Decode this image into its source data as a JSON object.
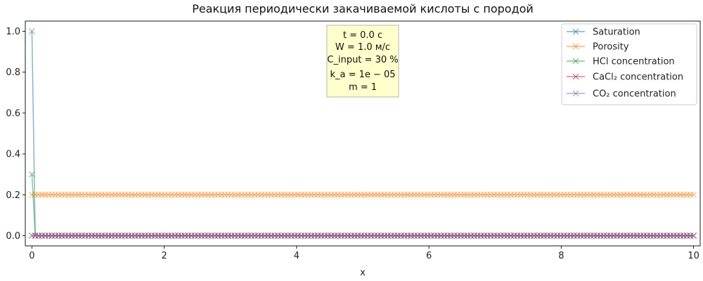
{
  "chart_data": {
    "type": "line",
    "title": "Реакция периодически закачиваемой кислоты с породой",
    "xlabel": "x",
    "ylabel": "",
    "xlim": [
      -0.1,
      10.1
    ],
    "ylim": [
      -0.05,
      1.05
    ],
    "x_ticks": [
      "0",
      "2",
      "4",
      "6",
      "8",
      "10"
    ],
    "y_ticks": [
      "0.0",
      "0.2",
      "0.4",
      "0.6",
      "0.8",
      "1.0"
    ],
    "x_range": [
      0,
      10
    ],
    "n_points": 200,
    "legend_position": "top-right",
    "marker": "x",
    "series": [
      {
        "name": "Saturation",
        "color": "#1f77b4",
        "start_value": 1.0,
        "rest_value": 0.0
      },
      {
        "name": "Porosity",
        "color": "#ff7f0e",
        "start_value": 0.2,
        "rest_value": 0.2
      },
      {
        "name": "HCl concentration",
        "color": "#2ca02c",
        "start_value": 0.3,
        "rest_value": 0.0
      },
      {
        "name": "CaCl₂ concentration",
        "color": "#d62728",
        "start_value": 0.0,
        "rest_value": 0.0
      },
      {
        "name": "CO₂ concentration",
        "color": "#9467bd",
        "start_value": 0.0,
        "rest_value": 0.0
      }
    ],
    "annotation": {
      "lines": [
        "t = 0.0 с",
        "W = 1.0 м/с",
        "C_input = 30 %",
        "k_a = 1e − 05",
        "m = 1"
      ]
    }
  }
}
